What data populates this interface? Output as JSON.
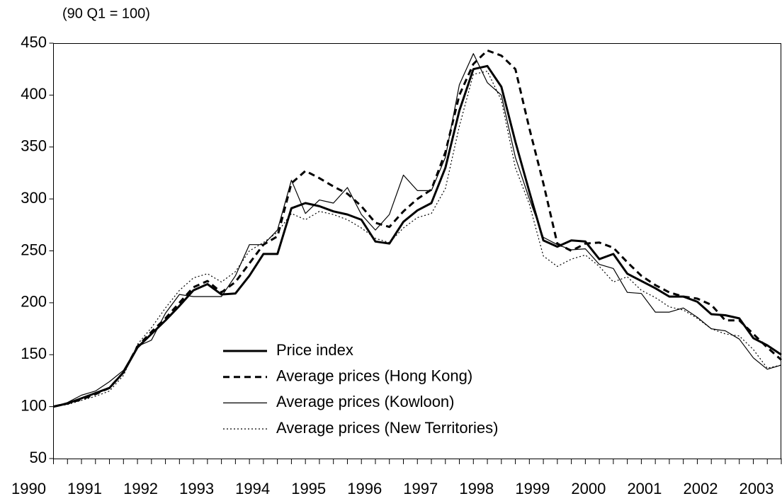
{
  "chart_data": {
    "type": "line",
    "subtitle": "(90 Q1 = 100)",
    "categories": [
      "1990",
      null,
      null,
      null,
      "1991",
      null,
      null,
      null,
      "1992",
      null,
      null,
      null,
      "1993",
      null,
      null,
      null,
      "1994",
      null,
      null,
      null,
      "1995",
      null,
      null,
      null,
      "1996",
      null,
      null,
      null,
      "1997",
      null,
      null,
      null,
      "1998",
      null,
      null,
      null,
      "1999",
      null,
      null,
      null,
      "2000",
      null,
      null,
      null,
      "2001",
      null,
      null,
      null,
      "2002",
      null,
      null,
      null,
      "2003"
    ],
    "ylim": [
      50,
      450
    ],
    "yticks": [
      50,
      100,
      150,
      200,
      250,
      300,
      350,
      400,
      450
    ],
    "grid": false,
    "series": [
      {
        "name": "Price index",
        "color": "#000000",
        "width": 3,
        "dash": "solid",
        "values": [
          100,
          103,
          108,
          113,
          118,
          133,
          157,
          170,
          183,
          197,
          212,
          218,
          208,
          209,
          226,
          247,
          247,
          291,
          296,
          293,
          288,
          285,
          280,
          259,
          257,
          278,
          289,
          296,
          330,
          385,
          425,
          428,
          408,
          355,
          307,
          260,
          254,
          260,
          259,
          242,
          247,
          228,
          221,
          214,
          206,
          206,
          201,
          189,
          188,
          185,
          166,
          159,
          150
        ]
      },
      {
        "name": "Average prices (Hong Kong)",
        "color": "#000000",
        "width": 3,
        "dash": "dashed",
        "values": [
          100,
          103,
          107,
          112,
          118,
          133,
          158,
          172,
          185,
          200,
          215,
          221,
          210,
          220,
          238,
          256,
          264,
          315,
          327,
          320,
          312,
          305,
          293,
          277,
          273,
          288,
          300,
          309,
          345,
          400,
          430,
          443,
          438,
          425,
          368,
          315,
          257,
          250,
          257,
          258,
          253,
          239,
          226,
          217,
          210,
          206,
          204,
          198,
          183,
          183,
          170,
          157,
          145
        ]
      },
      {
        "name": "Average prices (Kowloon)",
        "color": "#000000",
        "width": 1.2,
        "dash": "solid",
        "values": [
          100,
          104,
          111,
          115,
          124,
          135,
          158,
          164,
          190,
          208,
          206,
          206,
          206,
          226,
          256,
          256,
          270,
          318,
          286,
          299,
          296,
          311,
          285,
          270,
          285,
          323,
          308,
          308,
          340,
          410,
          440,
          412,
          400,
          340,
          300,
          263,
          256,
          251,
          252,
          237,
          233,
          210,
          209,
          191,
          191,
          195,
          186,
          175,
          173,
          165,
          147,
          136,
          140
        ]
      },
      {
        "name": "Average prices (New Territories)",
        "color": "#000000",
        "width": 1.2,
        "dash": "dotted",
        "values": [
          100,
          102,
          106,
          110,
          115,
          130,
          160,
          176,
          195,
          212,
          224,
          228,
          220,
          230,
          250,
          258,
          268,
          286,
          280,
          288,
          285,
          280,
          272,
          262,
          258,
          272,
          282,
          286,
          310,
          370,
          420,
          423,
          395,
          330,
          295,
          245,
          235,
          242,
          246,
          235,
          220,
          225,
          212,
          205,
          196,
          193,
          185,
          175,
          170,
          168,
          155,
          137,
          140
        ]
      }
    ]
  }
}
